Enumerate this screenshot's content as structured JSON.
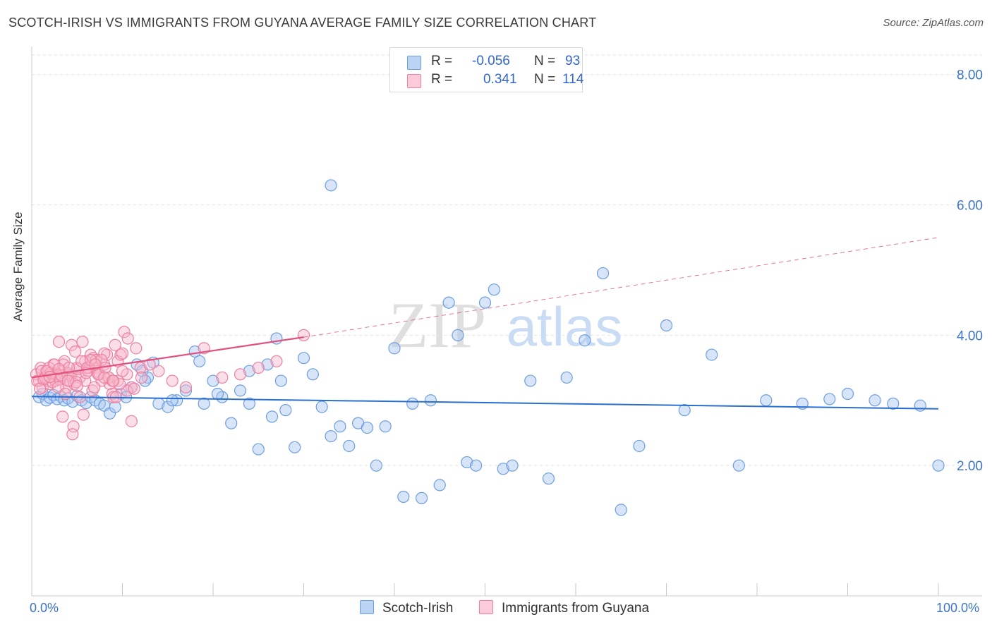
{
  "title": "SCOTCH-IRISH VS IMMIGRANTS FROM GUYANA AVERAGE FAMILY SIZE CORRELATION CHART",
  "source": "Source: ZipAtlas.com",
  "watermark": {
    "zip": "ZIP",
    "atlas": "atlas"
  },
  "legend": {
    "series1": {
      "r_label": "R =",
      "r_value": "-0.056",
      "n_label": "N =",
      "n_value": "93",
      "color": "#a9c6ef"
    },
    "series2": {
      "r_label": "R =",
      "r_value": "0.341",
      "n_label": "N =",
      "n_value": "114",
      "color": "#f7b8cb"
    }
  },
  "bottom_legend": {
    "series1": "Scotch-Irish",
    "series2": "Immigrants from Guyana"
  },
  "chart_data": {
    "type": "scatter",
    "title": "SCOTCH-IRISH VS IMMIGRANTS FROM GUYANA AVERAGE FAMILY SIZE CORRELATION CHART",
    "xlabel": "",
    "ylabel": "Average Family Size",
    "xlim": [
      0,
      100
    ],
    "ylim": [
      0,
      8.3
    ],
    "x_tick_labels": [
      "0.0%",
      "100.0%"
    ],
    "y_ticks": [
      2,
      4,
      6,
      8
    ],
    "y_tick_labels": [
      "2.00",
      "4.00",
      "6.00",
      "8.00"
    ],
    "series": [
      {
        "name": "Scotch-Irish",
        "color": "#6d9fe0",
        "fill": "#a9c6ef",
        "r": -0.056,
        "n": 93,
        "trend": {
          "x": [
            0,
            100
          ],
          "y": [
            3.06,
            2.87
          ],
          "style": "solid",
          "color": "#2a6fd0"
        },
        "x": [
          0.8,
          1.2,
          1.6,
          2.0,
          2.4,
          2.8,
          3.2,
          3.6,
          4.0,
          4.5,
          5.0,
          5.5,
          6.0,
          6.5,
          7.0,
          7.5,
          8.0,
          8.6,
          9.2,
          9.8,
          10.4,
          11.0,
          11.6,
          12.2,
          12.8,
          13.4,
          14.0,
          15.0,
          16.0,
          17.0,
          18.0,
          19.0,
          20.0,
          21.0,
          22.0,
          23.0,
          24.0,
          25.0,
          26.0,
          27.0,
          28.0,
          29.0,
          30.0,
          31.0,
          32.0,
          33.0,
          34.0,
          35.0,
          36.0,
          37.0,
          38.0,
          39.0,
          40.0,
          41.0,
          42.0,
          43.0,
          44.0,
          45.0,
          46.0,
          47.0,
          48.0,
          49.0,
          50.0,
          51.0,
          52.0,
          53.0,
          55.0,
          57.0,
          59.0,
          61.0,
          63.0,
          65.0,
          67.0,
          70.0,
          72.0,
          75.0,
          78.0,
          81.0,
          85.0,
          88.0,
          90.0,
          93.0,
          95.0,
          98.0,
          100.0,
          33.0,
          26.5,
          24.0,
          18.5,
          27.5,
          20.5,
          15.5,
          12.5
        ],
        "y": [
          3.05,
          3.1,
          3.0,
          3.04,
          3.08,
          3.02,
          3.06,
          3.0,
          3.03,
          2.98,
          3.07,
          3.0,
          2.96,
          3.05,
          3.0,
          2.95,
          2.92,
          2.8,
          2.9,
          3.1,
          3.05,
          3.2,
          3.55,
          3.45,
          3.35,
          3.58,
          2.95,
          2.9,
          3.0,
          3.15,
          3.75,
          2.95,
          3.3,
          3.05,
          2.65,
          3.15,
          3.45,
          2.25,
          3.55,
          3.95,
          2.85,
          2.28,
          3.65,
          3.4,
          2.9,
          2.45,
          2.6,
          2.3,
          2.65,
          2.58,
          2.0,
          2.6,
          3.8,
          1.52,
          2.95,
          1.5,
          3.0,
          1.7,
          4.5,
          4.0,
          2.05,
          2.0,
          4.5,
          4.7,
          1.95,
          2.0,
          3.3,
          1.8,
          3.35,
          3.92,
          4.95,
          1.32,
          2.3,
          4.15,
          2.85,
          3.7,
          2.0,
          3.0,
          2.95,
          3.02,
          3.1,
          3.0,
          2.95,
          2.92,
          2.0,
          6.3,
          2.75,
          2.95,
          3.6,
          3.3,
          3.1,
          3.0,
          3.3
        ],
        "y_note": "estimated"
      },
      {
        "name": "Immigrants from Guyana",
        "color": "#ee7fa1",
        "fill": "#f7b8cb",
        "r": 0.341,
        "n": 114,
        "trend": {
          "x": [
            0,
            30,
            100
          ],
          "y": [
            3.35,
            3.97,
            5.5
          ],
          "style": "solid-then-dashed",
          "color": "#e0517f"
        },
        "x": [
          0.5,
          0.8,
          1.0,
          1.2,
          1.4,
          1.6,
          1.8,
          2.0,
          2.2,
          2.4,
          2.6,
          2.8,
          3.0,
          3.2,
          3.4,
          3.6,
          3.8,
          4.0,
          4.2,
          4.4,
          4.6,
          4.8,
          5.0,
          5.3,
          5.6,
          5.9,
          6.2,
          6.5,
          6.8,
          7.1,
          7.4,
          7.7,
          8.0,
          8.3,
          8.6,
          8.9,
          9.2,
          9.5,
          9.8,
          10.2,
          10.6,
          11.0,
          11.5,
          12.0,
          13.0,
          14.0,
          15.5,
          17.0,
          19.0,
          21.0,
          23.0,
          25.0,
          27.0,
          30.0,
          0.6,
          1.1,
          1.5,
          1.9,
          2.3,
          2.7,
          3.1,
          3.5,
          3.9,
          4.3,
          4.7,
          5.1,
          5.5,
          5.9,
          6.3,
          6.7,
          7.1,
          7.5,
          8.0,
          8.5,
          9.0,
          9.5,
          10.0,
          10.5,
          11.0,
          1.3,
          2.1,
          2.9,
          3.7,
          4.5,
          5.3,
          6.1,
          6.9,
          7.7,
          8.5,
          9.3,
          0.9,
          1.7,
          2.5,
          3.3,
          4.1,
          4.9,
          5.7,
          6.5,
          7.3,
          8.1,
          8.9,
          9.7,
          10.5,
          11.3,
          12.1,
          2.0,
          3.0,
          4.0,
          5.0,
          6.0,
          7.0,
          8.0,
          9.0,
          10.0
        ],
        "y": [
          3.4,
          3.3,
          3.5,
          3.2,
          3.35,
          3.45,
          3.3,
          3.25,
          3.4,
          3.55,
          3.3,
          3.38,
          3.9,
          3.45,
          2.75,
          3.6,
          3.2,
          3.4,
          3.3,
          3.85,
          2.6,
          3.75,
          3.5,
          3.35,
          3.9,
          3.6,
          3.45,
          3.7,
          3.65,
          3.5,
          3.4,
          3.3,
          3.55,
          3.7,
          3.25,
          3.1,
          3.85,
          3.6,
          3.7,
          4.05,
          3.95,
          3.2,
          3.8,
          3.5,
          3.55,
          3.45,
          3.3,
          3.2,
          3.8,
          3.35,
          3.4,
          3.5,
          3.6,
          4.0,
          3.3,
          3.45,
          3.35,
          3.5,
          3.28,
          3.4,
          3.32,
          3.55,
          3.42,
          3.38,
          3.25,
          3.48,
          3.6,
          3.3,
          3.5,
          3.15,
          3.62,
          3.4,
          3.72,
          3.35,
          3.05,
          3.3,
          3.72,
          3.15,
          2.68,
          3.32,
          3.42,
          3.2,
          3.1,
          2.48,
          3.05,
          3.5,
          3.2,
          3.62,
          3.35,
          3.05,
          3.18,
          3.45,
          3.55,
          3.38,
          3.5,
          3.28,
          2.78,
          3.62,
          3.4,
          3.5,
          3.3,
          3.25,
          3.4,
          3.18,
          3.35,
          3.36,
          3.48,
          3.3,
          3.22,
          3.42,
          3.55,
          3.35,
          3.3,
          3.45
        ],
        "y_note": "estimated"
      }
    ]
  }
}
